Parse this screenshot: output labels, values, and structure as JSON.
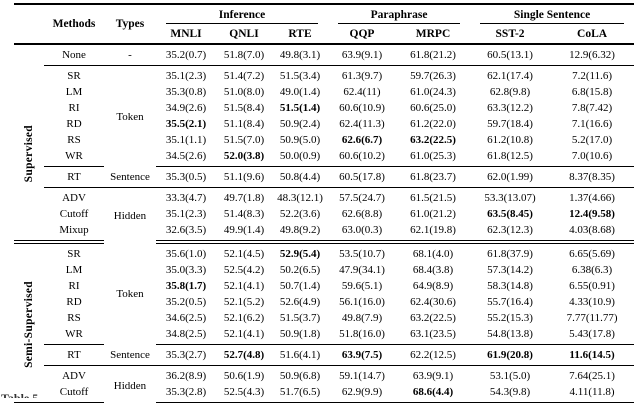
{
  "caption_fragment": "Table 5",
  "table": {
    "header": {
      "methods": "Methods",
      "types": "Types",
      "groups": [
        {
          "label": "Inference",
          "span": 3
        },
        {
          "label": "Paraphrase",
          "span": 2
        },
        {
          "label": "Single Sentence",
          "span": 2
        }
      ],
      "columns": [
        "MNLI",
        "QNLI",
        "RTE",
        "QQP",
        "MRPC",
        "SST-2",
        "CoLA"
      ]
    },
    "sections": [
      {
        "side_label": "",
        "groups": [
          {
            "type": "-",
            "rows": [
              {
                "method": "None",
                "cells": [
                  "35.2(0.7)",
                  "51.8(7.0)",
                  "49.8(3.1)",
                  "63.9(9.1)",
                  "61.8(21.2)",
                  "60.5(13.1)",
                  "12.9(6.32)"
                ],
                "bold": []
              }
            ]
          }
        ]
      },
      {
        "side_label": "Supervised",
        "groups": [
          {
            "type": "Token",
            "rows": [
              {
                "method": "SR",
                "cells": [
                  "35.1(2.3)",
                  "51.4(7.2)",
                  "51.5(3.4)",
                  "61.3(9.7)",
                  "59.7(26.3)",
                  "62.1(17.4)",
                  "7.2(11.6)"
                ],
                "bold": []
              },
              {
                "method": "LM",
                "cells": [
                  "35.3(0.8)",
                  "51.0(8.0)",
                  "49.0(1.4)",
                  "62.4(11)",
                  "61.0(24.3)",
                  "62.8(9.8)",
                  "6.8(15.8)"
                ],
                "bold": []
              },
              {
                "method": "RI",
                "cells": [
                  "34.9(2.6)",
                  "51.5(8.4)",
                  "51.5(1.4)",
                  "60.6(10.9)",
                  "60.6(25.0)",
                  "63.3(12.2)",
                  "7.8(7.42)"
                ],
                "bold": [
                  2
                ]
              },
              {
                "method": "RD",
                "cells": [
                  "35.5(2.1)",
                  "51.1(8.4)",
                  "50.9(2.4)",
                  "62.4(11.3)",
                  "61.2(22.0)",
                  "59.7(18.4)",
                  "7.1(16.6)"
                ],
                "bold": [
                  0
                ]
              },
              {
                "method": "RS",
                "cells": [
                  "35.1(1.1)",
                  "51.5(7.0)",
                  "50.9(5.0)",
                  "62.6(6.7)",
                  "63.2(22.5)",
                  "61.2(10.8)",
                  "5.2(17.0)"
                ],
                "bold": [
                  3,
                  4
                ]
              },
              {
                "method": "WR",
                "cells": [
                  "34.5(2.6)",
                  "52.0(3.8)",
                  "50.0(0.9)",
                  "60.6(10.2)",
                  "61.0(25.3)",
                  "61.8(12.5)",
                  "7.0(10.6)"
                ],
                "bold": [
                  1
                ]
              }
            ]
          },
          {
            "type": "Sentence",
            "rows": [
              {
                "method": "RT",
                "cells": [
                  "35.3(0.5)",
                  "51.1(9.6)",
                  "50.8(4.4)",
                  "60.5(17.8)",
                  "61.8(23.7)",
                  "62.0(1.99)",
                  "8.37(8.35)"
                ],
                "bold": []
              }
            ]
          },
          {
            "type": "Hidden",
            "rows": [
              {
                "method": "ADV",
                "cells": [
                  "33.3(4.7)",
                  "49.7(1.8)",
                  "48.3(12.1)",
                  "57.5(24.7)",
                  "61.5(21.5)",
                  "53.3(13.07)",
                  "1.37(4.66)"
                ],
                "bold": []
              },
              {
                "method": "Cutoff",
                "cells": [
                  "35.1(2.3)",
                  "51.4(8.3)",
                  "52.2(3.6)",
                  "62.6(8.8)",
                  "61.0(21.2)",
                  "63.5(8.45)",
                  "12.4(9.58)"
                ],
                "bold": [
                  5,
                  6
                ]
              },
              {
                "method": "Mixup",
                "cells": [
                  "32.6(3.5)",
                  "49.9(1.4)",
                  "49.8(9.2)",
                  "63.0(0.3)",
                  "62.1(19.8)",
                  "62.3(12.3)",
                  "4.03(8.68)"
                ],
                "bold": []
              }
            ]
          }
        ]
      },
      {
        "side_label": "Semi-Supervised",
        "groups": [
          {
            "type": "Token",
            "rows": [
              {
                "method": "SR",
                "cells": [
                  "35.6(1.0)",
                  "52.1(4.5)",
                  "52.9(5.4)",
                  "53.5(10.7)",
                  "68.1(4.0)",
                  "61.8(37.9)",
                  "6.65(5.69)"
                ],
                "bold": [
                  2
                ]
              },
              {
                "method": "LM",
                "cells": [
                  "35.0(3.3)",
                  "52.5(4.2)",
                  "50.2(6.5)",
                  "47.9(34.1)",
                  "68.4(3.8)",
                  "57.3(14.2)",
                  "6.38(6.3)"
                ],
                "bold": []
              },
              {
                "method": "RI",
                "cells": [
                  "35.8(1.7)",
                  "52.1(4.1)",
                  "50.7(1.4)",
                  "59.6(5.1)",
                  "64.9(8.9)",
                  "58.3(14.8)",
                  "6.55(0.91)"
                ],
                "bold": [
                  0
                ]
              },
              {
                "method": "RD",
                "cells": [
                  "35.2(0.5)",
                  "52.1(5.2)",
                  "52.6(4.9)",
                  "56.1(16.0)",
                  "62.4(30.6)",
                  "55.7(16.4)",
                  "4.33(10.9)"
                ],
                "bold": []
              },
              {
                "method": "RS",
                "cells": [
                  "34.6(2.5)",
                  "52.1(6.2)",
                  "51.5(3.7)",
                  "49.8(7.9)",
                  "63.2(22.5)",
                  "55.2(15.3)",
                  "7.77(11.77)"
                ],
                "bold": []
              },
              {
                "method": "WR",
                "cells": [
                  "34.8(2.5)",
                  "52.1(4.1)",
                  "50.9(1.8)",
                  "51.8(16.0)",
                  "63.1(23.5)",
                  "54.8(13.8)",
                  "5.43(17.8)"
                ],
                "bold": []
              }
            ]
          },
          {
            "type": "Sentence",
            "rows": [
              {
                "method": "RT",
                "cells": [
                  "35.3(2.7)",
                  "52.7(4.8)",
                  "51.6(4.1)",
                  "63.9(7.5)",
                  "62.2(12.5)",
                  "61.9(20.8)",
                  "11.6(14.5)"
                ],
                "bold": [
                  1,
                  3,
                  5,
                  6
                ]
              }
            ]
          },
          {
            "type": "Hidden",
            "rows": [
              {
                "method": "ADV",
                "cells": [
                  "36.2(8.9)",
                  "50.6(1.9)",
                  "50.9(6.8)",
                  "59.1(14.7)",
                  "63.9(9.1)",
                  "53.1(5.0)",
                  "7.64(25.1)"
                ],
                "bold": []
              },
              {
                "method": "Cutoff",
                "cells": [
                  "35.3(2.8)",
                  "52.5(4.3)",
                  "51.7(6.5)",
                  "62.9(9.9)",
                  "68.6(4.4)",
                  "54.3(9.8)",
                  "4.11(11.8)"
                ],
                "bold": [
                  4
                ]
              }
            ]
          }
        ]
      }
    ]
  }
}
